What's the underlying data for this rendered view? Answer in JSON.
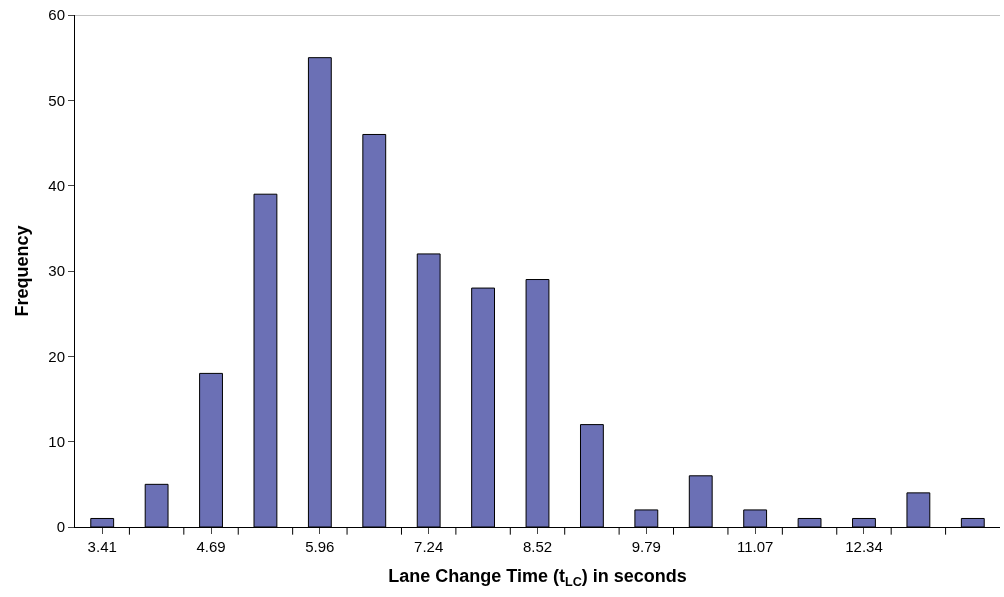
{
  "chart_data": {
    "type": "bar",
    "xlabel": "Lane Change Time (t$_{LC}$) in seconds",
    "ylabel": "Frequency",
    "categories": [
      "3.41",
      null,
      "4.69",
      null,
      "5.96",
      null,
      "7.24",
      null,
      "8.52",
      null,
      "9.79",
      null,
      "11.07",
      null,
      "12.34",
      null,
      null
    ],
    "values": [
      1,
      5,
      18,
      39,
      55,
      46,
      32,
      28,
      29,
      12,
      2,
      6,
      2,
      1,
      1,
      4,
      1
    ],
    "color": "#6b70b5",
    "ylim": [
      0,
      60
    ],
    "yticks": [
      0,
      10,
      20,
      30,
      40,
      50,
      60
    ]
  }
}
